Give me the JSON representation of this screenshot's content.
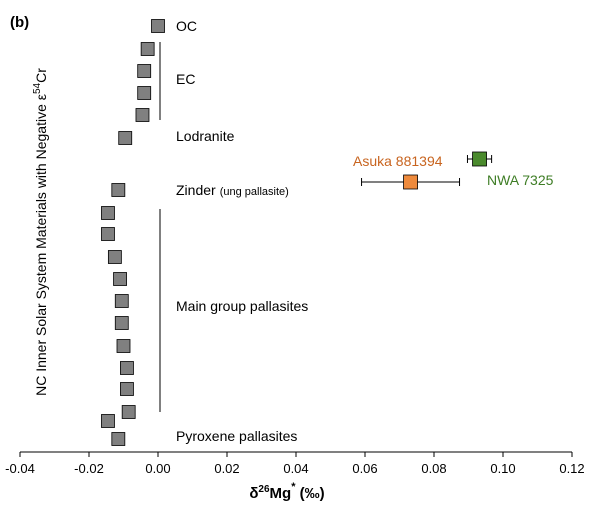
{
  "chart_data": {
    "type": "scatter",
    "panel_label": "(b)",
    "xlabel": "δ26Mg* (‰)",
    "xlabel_parts": {
      "delta": "δ",
      "sup": "26",
      "main": "Mg",
      "star": "*",
      "unit": " (‰)"
    },
    "ylabel": "NC Inner Solar System Materials with Negative ε54Cr",
    "ylabel_parts": {
      "main": "NC Inner Solar System Materials with Negative ε",
      "sup": "54",
      "tail": "Cr"
    },
    "xlim": [
      -0.04,
      0.12
    ],
    "xticks": [
      "-0.04",
      "-0.02",
      "0.00",
      "0.02",
      "0.04",
      "0.06",
      "0.08",
      "0.10",
      "0.12"
    ],
    "grid": false,
    "groups": [
      {
        "label": "OC",
        "points": [
          0.0
        ]
      },
      {
        "label": "EC",
        "points": [
          -0.003,
          -0.004,
          -0.004,
          -0.0045
        ]
      },
      {
        "label": "Lodranite",
        "points": [
          -0.0095
        ]
      },
      {
        "label": "Zinder",
        "sublabel": "(ung pallasite)",
        "points": [
          -0.0115
        ]
      },
      {
        "label": "Main group pallasites",
        "points": [
          -0.0145,
          -0.0145,
          -0.0125,
          -0.011,
          -0.0105,
          -0.0105,
          -0.01,
          -0.009,
          -0.009,
          -0.0085
        ]
      },
      {
        "label": "Pyroxene pallasites",
        "points": [
          -0.0145,
          -0.0115
        ]
      }
    ],
    "samples": [
      {
        "label": "NWA 7325",
        "x": 0.0932,
        "err": 0.0035,
        "color": "#4a8a2d"
      },
      {
        "label": "Asuka 881394",
        "x": 0.0732,
        "err": 0.0142,
        "color": "#ee8a3c"
      }
    ],
    "colors": {
      "marker": "#808080",
      "orange_text": "#c8641f",
      "green_text": "#3e7d25"
    }
  }
}
